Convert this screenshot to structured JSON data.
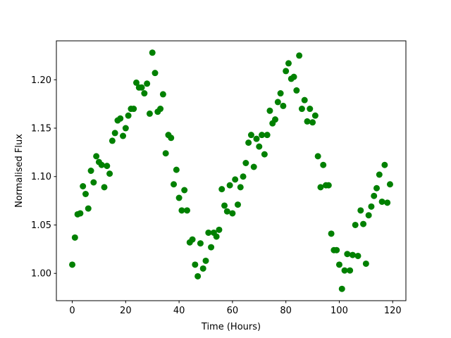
{
  "chart_data": {
    "type": "scatter",
    "title": "",
    "xlabel": "Time (Hours)",
    "ylabel": "Normalised Flux",
    "xlim": [
      -5.95,
      124.95
    ],
    "ylim": [
      0.9718,
      1.2402
    ],
    "grid": false,
    "marker_color": "#008000",
    "xticks": [
      0,
      20,
      40,
      60,
      80,
      100,
      120
    ],
    "xtick_labels": [
      "0",
      "20",
      "40",
      "60",
      "80",
      "100",
      "120"
    ],
    "yticks": [
      1.0,
      1.05,
      1.1,
      1.15,
      1.2
    ],
    "ytick_labels": [
      "1.00",
      "1.05",
      "1.10",
      "1.15",
      "1.20"
    ],
    "x": [
      0,
      1,
      2,
      3,
      4,
      5,
      6,
      7,
      8,
      9,
      10,
      11,
      12,
      13,
      14,
      15,
      16,
      17,
      18,
      19,
      20,
      21,
      22,
      23,
      24,
      25,
      26,
      27,
      28,
      29,
      30,
      31,
      32,
      33,
      34,
      35,
      36,
      37,
      38,
      39,
      40,
      41,
      42,
      43,
      44,
      45,
      46,
      47,
      48,
      49,
      50,
      51,
      52,
      53,
      54,
      55,
      56,
      57,
      58,
      59,
      60,
      61,
      62,
      63,
      64,
      65,
      66,
      67,
      68,
      69,
      70,
      71,
      72,
      73,
      74,
      75,
      76,
      77,
      78,
      79,
      80,
      81,
      82,
      83,
      84,
      85,
      86,
      87,
      88,
      89,
      90,
      91,
      92,
      93,
      94,
      95,
      96,
      97,
      98,
      99,
      100,
      101,
      102,
      103,
      104,
      105,
      106,
      107,
      108,
      109,
      110,
      111,
      112,
      113,
      114,
      115,
      116,
      117,
      118,
      119
    ],
    "y": [
      1.009,
      1.037,
      1.061,
      1.062,
      1.09,
      1.082,
      1.067,
      1.106,
      1.094,
      1.121,
      1.115,
      1.112,
      1.089,
      1.111,
      1.103,
      1.137,
      1.145,
      1.158,
      1.16,
      1.142,
      1.15,
      1.163,
      1.17,
      1.17,
      1.197,
      1.192,
      1.192,
      1.186,
      1.196,
      1.165,
      1.228,
      1.207,
      1.167,
      1.17,
      1.185,
      1.124,
      1.143,
      1.14,
      1.092,
      1.107,
      1.078,
      1.065,
      1.086,
      1.065,
      1.032,
      1.035,
      1.009,
      0.997,
      1.031,
      1.005,
      1.013,
      1.042,
      1.027,
      1.042,
      1.038,
      1.045,
      1.087,
      1.07,
      1.064,
      1.091,
      1.062,
      1.097,
      1.071,
      1.089,
      1.1,
      1.114,
      1.135,
      1.143,
      1.11,
      1.139,
      1.131,
      1.143,
      1.123,
      1.143,
      1.168,
      1.155,
      1.159,
      1.177,
      1.186,
      1.173,
      1.209,
      1.217,
      1.201,
      1.203,
      1.189,
      1.225,
      1.17,
      1.179,
      1.157,
      1.17,
      1.156,
      1.163,
      1.121,
      1.089,
      1.112,
      1.091,
      1.091,
      1.041,
      1.024,
      1.024,
      1.009,
      0.984,
      1.003,
      1.02,
      1.003,
      1.019,
      1.05,
      1.018,
      1.065,
      1.051,
      1.01,
      1.06,
      1.069,
      1.08,
      1.088,
      1.102,
      1.074,
      1.112,
      1.073,
      1.092
    ]
  }
}
